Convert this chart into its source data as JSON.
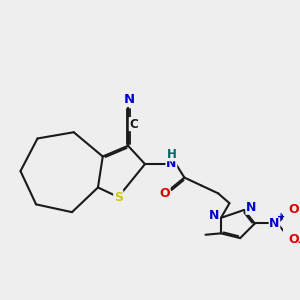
{
  "bg_color": "#eeeeee",
  "bond_color": "#1a1a1a",
  "bond_lw": 1.5,
  "dbo": 0.055,
  "colors": {
    "S": "#cccc00",
    "N": "#0000dd",
    "O": "#dd0000",
    "H": "#006666",
    "C": "#1a1a1a"
  },
  "fs": 9.0
}
